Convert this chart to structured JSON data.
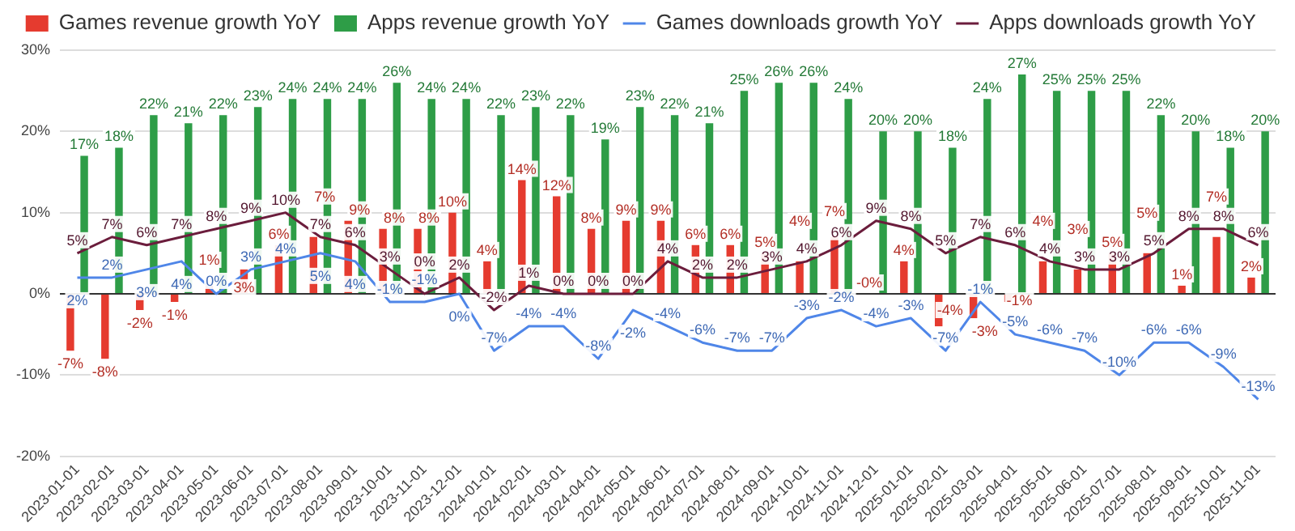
{
  "chart_data": {
    "type": "bar",
    "categories": [
      "2023-01-01",
      "2023-02-01",
      "2023-03-01",
      "2023-04-01",
      "2023-05-01",
      "2023-06-01",
      "2023-07-01",
      "2023-08-01",
      "2023-09-01",
      "2023-10-01",
      "2023-11-01",
      "2023-12-01",
      "2024-01-01",
      "2024-02-01",
      "2024-03-01",
      "2024-04-01",
      "2024-05-01",
      "2024-06-01",
      "2024-07-01",
      "2024-08-01",
      "2024-09-01",
      "2024-10-01",
      "2024-11-01",
      "2024-12-01",
      "2025-01-01",
      "2025-02-01",
      "2025-03-01",
      "2025-04-01",
      "2025-05-01",
      "2025-06-01",
      "2025-07-01",
      "2025-08-01",
      "2025-09-01",
      "2025-10-01",
      "2025-11-01"
    ],
    "series": [
      {
        "name": "Games revenue growth YoY",
        "type": "bar",
        "color": "#e53b2f",
        "values": [
          -7,
          -8,
          -2,
          -1,
          1,
          3,
          6,
          7,
          9,
          8,
          8,
          10,
          4,
          14,
          12,
          8,
          9,
          9,
          6,
          6,
          5,
          4,
          7,
          0,
          4,
          -4,
          -3,
          -1,
          4,
          3,
          5,
          5,
          1,
          7,
          2
        ],
        "value_labels": [
          "-7%",
          "-8%",
          "-2%",
          "-1%",
          "1%",
          "3%",
          "6%",
          "7%",
          "9%",
          "8%",
          "8%",
          "10%",
          "4%",
          "14%",
          "12%",
          "8%",
          "9%",
          "9%",
          "6%",
          "6%",
          "5%",
          "4%",
          "7%",
          "-0%",
          "4%",
          "-4%",
          "-3%",
          "-1%",
          "4%",
          "3%",
          "5%",
          "5%",
          "1%",
          "7%",
          "2%"
        ]
      },
      {
        "name": "Apps revenue growth YoY",
        "type": "bar",
        "color": "#2e9d47",
        "values": [
          17,
          18,
          22,
          21,
          22,
          23,
          24,
          24,
          24,
          26,
          24,
          24,
          22,
          23,
          22,
          19,
          23,
          22,
          21,
          25,
          26,
          26,
          24,
          20,
          20,
          18,
          24,
          27,
          25,
          25,
          25,
          22,
          20,
          18,
          20
        ],
        "value_labels": [
          "17%",
          "18%",
          "22%",
          "21%",
          "22%",
          "23%",
          "24%",
          "24%",
          "24%",
          "26%",
          "24%",
          "24%",
          "22%",
          "23%",
          "22%",
          "19%",
          "23%",
          "22%",
          "21%",
          "25%",
          "26%",
          "26%",
          "24%",
          "20%",
          "20%",
          "18%",
          "24%",
          "27%",
          "25%",
          "25%",
          "25%",
          "22%",
          "20%",
          "18%",
          "20%"
        ]
      },
      {
        "name": "Games downloads growth YoY",
        "type": "line",
        "color": "#4f86e8",
        "values": [
          2,
          2,
          3,
          4,
          0,
          3,
          4,
          5,
          4,
          -1,
          -1,
          0,
          -7,
          -4,
          -4,
          -8,
          -2,
          -4,
          -6,
          -7,
          -7,
          -3,
          -2,
          -4,
          -3,
          -7,
          -1,
          -5,
          -6,
          -7,
          -10,
          -6,
          -6,
          -9,
          -13
        ],
        "value_labels": [
          "2%",
          "2%",
          "3%",
          "4%",
          "0%",
          "3%",
          "4%",
          "5%",
          "4%",
          "-1%",
          "-1%",
          "0%",
          "-7%",
          "-4%",
          "-4%",
          "-8%",
          "-2%",
          "-4%",
          "-6%",
          "-7%",
          "-7%",
          "-3%",
          "-2%",
          "-4%",
          "-3%",
          "-7%",
          "-1%",
          "-5%",
          "-6%",
          "-7%",
          "-10%",
          "-6%",
          "-6%",
          "-9%",
          "-13%"
        ]
      },
      {
        "name": "Apps downloads growth YoY",
        "type": "line",
        "color": "#6b1d3c",
        "values": [
          5,
          7,
          6,
          7,
          8,
          9,
          10,
          7,
          6,
          3,
          0,
          2,
          -2,
          1,
          0,
          0,
          0,
          4,
          2,
          2,
          3,
          4,
          6,
          9,
          8,
          5,
          7,
          6,
          4,
          3,
          3,
          5,
          8,
          8,
          6
        ],
        "value_labels": [
          "5%",
          "7%",
          "6%",
          "7%",
          "8%",
          "9%",
          "10%",
          "7%",
          "6%",
          "3%",
          "0%",
          "2%",
          "-2%",
          "1%",
          "0%",
          "0%",
          "0%",
          "4%",
          "2%",
          "2%",
          "3%",
          "4%",
          "6%",
          "9%",
          "8%",
          "5%",
          "7%",
          "6%",
          "4%",
          "3%",
          "3%",
          "5%",
          "8%",
          "8%",
          "6%"
        ]
      }
    ],
    "ylim": [
      -20,
      30
    ],
    "yticks": [
      {
        "value": -20,
        "label": "-20%"
      },
      {
        "value": -10,
        "label": "-10%"
      },
      {
        "value": 0,
        "label": "0%"
      },
      {
        "value": 10,
        "label": "10%"
      },
      {
        "value": 20,
        "label": "20%"
      },
      {
        "value": 30,
        "label": "30%"
      }
    ],
    "grid": "y",
    "legend": "top",
    "marker": "none",
    "line_style": "solid"
  }
}
